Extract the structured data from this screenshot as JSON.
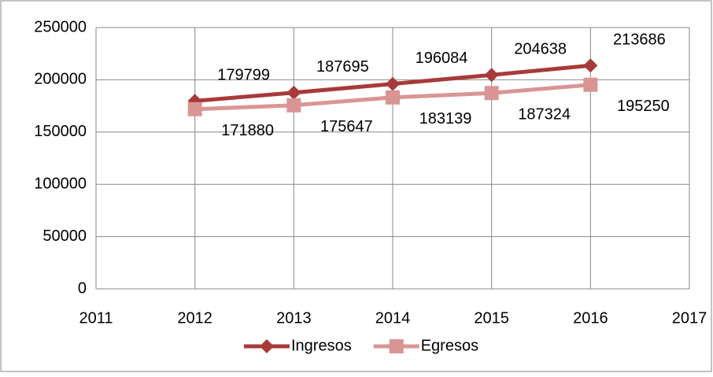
{
  "chart_data": {
    "type": "line",
    "x": [
      2012,
      2013,
      2014,
      2015,
      2016
    ],
    "series": [
      {
        "name": "Ingresos",
        "color": "#a83a3a",
        "marker": "diamond",
        "values": [
          179799,
          187695,
          196084,
          204638,
          213686
        ]
      },
      {
        "name": "Egresos",
        "color": "#d99594",
        "marker": "square",
        "values": [
          171880,
          175647,
          183139,
          187324,
          195250
        ]
      }
    ],
    "xlim": [
      2011,
      2017
    ],
    "xticks": [
      2011,
      2012,
      2013,
      2014,
      2015,
      2016,
      2017
    ],
    "ylim": [
      0,
      250000
    ],
    "yticks": [
      0,
      50000,
      100000,
      150000,
      200000,
      250000
    ],
    "grid": true,
    "legend": "bottom",
    "data_labels": true
  }
}
